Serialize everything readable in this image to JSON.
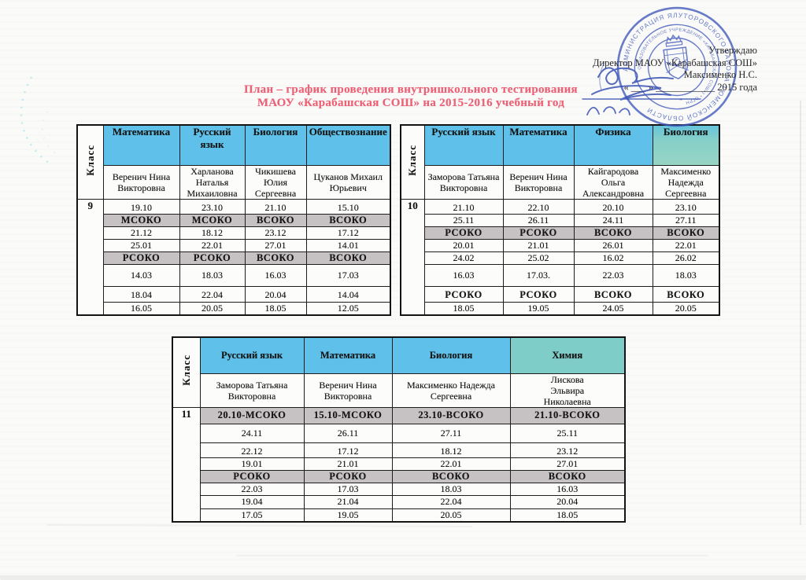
{
  "title": {
    "line1": "План – график проведения внутришкольного тестирования",
    "line2": "МАОУ «Карабашская СОШ» на 2015-2016 учебный год",
    "color": "#ec6176"
  },
  "approval": {
    "line1": "Утверждаю",
    "line2": "Директор МАОУ «Карабашская СОШ»",
    "line3": "Максименко Н.С.",
    "line4": "« ___ » ____________ 2015 года"
  },
  "stamp": {
    "outer_ring": "АДМИНИСТРАЦИЯ ЯЛУТОРОВСКОГО РАЙОНА ТЮМЕНСКОЙ ОБЛАСТИ",
    "inner_ring": "ОБРАЗОВАТЕЛЬНОЕ УЧРЕЖДЕНИЕ «КАРАБАШСКАЯ СОШ») * ОГРН",
    "color": "#3f58bb"
  },
  "colors": {
    "header_blue": "#5fc1e9",
    "header_green": "#8fd1c4",
    "soko_gray": "#c6c2c4",
    "title_red": "#ec6176"
  },
  "tables": [
    {
      "class_label": "Класс",
      "class_value": "9",
      "subjects": [
        {
          "label": "Математика",
          "tint": "blue"
        },
        {
          "label": "Русский язык",
          "tint": "blue"
        },
        {
          "label": "Биология",
          "tint": "blue"
        },
        {
          "label": "Обществознание",
          "tint": "blue"
        }
      ],
      "teachers": [
        "Веренич Нина Викторовна",
        "Харланова Наталья Михаиловна",
        "Чикишева Юлия Сергеевна",
        "Цуканов Михаил Юрьевич"
      ],
      "rows": [
        {
          "kind": "dates-top",
          "cells": [
            "19.10",
            "23.10",
            "21.10",
            "15.10"
          ]
        },
        {
          "kind": "soko-gray",
          "cells": [
            "МСОКО",
            "МСОКО",
            "ВСОКО",
            "ВСОКО"
          ]
        },
        {
          "kind": "dates",
          "cells": [
            "21.12",
            "18.12",
            "23.12",
            "17.12"
          ]
        },
        {
          "kind": "dates",
          "cells": [
            "25.01",
            "22.01",
            "27.01",
            "14.01"
          ]
        },
        {
          "kind": "soko-gray",
          "cells": [
            "РСОКО",
            "РСОКО",
            "ВСОКО",
            "ВСОКО"
          ]
        },
        {
          "kind": "dates",
          "cells": [
            "14.03",
            "18.03",
            "16.03",
            "17.03"
          ]
        },
        {
          "kind": "dates-top",
          "cells": [
            "18.04",
            "22.04",
            "20.04",
            "14.04"
          ]
        },
        {
          "kind": "dates",
          "cells": [
            "16.05",
            "20.05",
            "18.05",
            "12.05"
          ]
        }
      ]
    },
    {
      "class_label": "Класс",
      "class_value": "10",
      "subjects": [
        {
          "label": "Русский язык",
          "tint": "blue"
        },
        {
          "label": "Математика",
          "tint": "blue"
        },
        {
          "label": "Физика",
          "tint": "blue"
        },
        {
          "label": "Биология",
          "tint": "green"
        }
      ],
      "teachers": [
        "Заморова Татьяна Викторовна",
        "Веренич Нина Викторовна",
        "Кайгародова Ольга Александровна",
        "Максименко Надежда Сергеевна"
      ],
      "rows": [
        {
          "kind": "dates-top",
          "cells": [
            "21.10",
            "22.10",
            "20.10",
            "23.10"
          ]
        },
        {
          "kind": "dates",
          "cells": [
            "25.11",
            "26.11",
            "24.11",
            "27.11"
          ]
        },
        {
          "kind": "soko-gray",
          "cells": [
            "РСОКО",
            "РСОКО",
            "ВСОКО",
            "ВСОКО"
          ]
        },
        {
          "kind": "dates",
          "cells": [
            "20.01",
            "21.01",
            "26.01",
            "22.01"
          ]
        },
        {
          "kind": "dates",
          "cells": [
            "24.02",
            "25.02",
            "16.02",
            "26.02"
          ]
        },
        {
          "kind": "dates",
          "cells": [
            "16.03",
            "17.03.",
            "22.03",
            "18.03"
          ]
        },
        {
          "kind": "soko-white",
          "cells": [
            "РСОКО",
            "РСОКО",
            "ВСОКО",
            "ВСОКО"
          ]
        },
        {
          "kind": "dates",
          "cells": [
            "18.05",
            "19.05",
            "24.05",
            "20.05"
          ]
        }
      ]
    },
    {
      "class_label": "Класс",
      "class_value": "11",
      "subjects": [
        {
          "label": "Русский язык",
          "tint": "blue"
        },
        {
          "label": "Математика",
          "tint": "blue"
        },
        {
          "label": "Биология",
          "tint": "blue"
        },
        {
          "label": "Химия",
          "tint": "green"
        }
      ],
      "teachers": [
        "Заморова Татьяна Викторовна",
        "Веренич Нина Викторовна",
        "Максименко Надежда Сергеевна",
        "Лискова Эльвира Николаевна"
      ],
      "rows": [
        {
          "kind": "soko-gray",
          "cells": [
            "20.10-МСОКО",
            "15.10-МСОКО",
            "23.10-ВСОКО",
            "21.10-ВСОКО"
          ]
        },
        {
          "kind": "dates",
          "cells": [
            "24.11",
            "26.11",
            "27.11",
            "25.11"
          ]
        },
        {
          "kind": "dates-top",
          "cells": [
            "22.12",
            "17.12",
            "18.12",
            "23.12"
          ]
        },
        {
          "kind": "dates",
          "cells": [
            "19.01",
            "21.01",
            "22.01",
            "27.01"
          ]
        },
        {
          "kind": "soko-gray",
          "cells": [
            "РСОКО",
            "РСОКО",
            "ВСОКО",
            "ВСОКО"
          ]
        },
        {
          "kind": "dates",
          "cells": [
            "22.03",
            "17.03",
            "18.03",
            "16.03"
          ]
        },
        {
          "kind": "dates",
          "cells": [
            "19.04",
            "21.04",
            "22.04",
            "20.04"
          ]
        },
        {
          "kind": "dates",
          "cells": [
            "17.05",
            "19.05",
            "20.05",
            "18.05"
          ]
        }
      ]
    }
  ]
}
